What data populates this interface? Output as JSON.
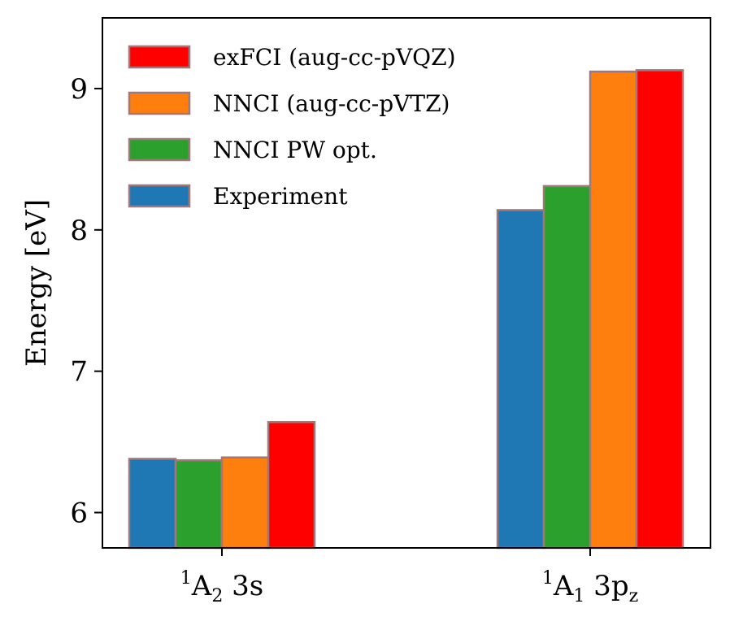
{
  "chart_data": {
    "type": "bar",
    "ylabel": "Energy [eV]",
    "xlabel": "",
    "ylim": [
      5.75,
      9.5
    ],
    "yticks": [
      6,
      7,
      8,
      9
    ],
    "grid": false,
    "legend_position": "top-left",
    "categories": [
      {
        "base": "1",
        "main": "A",
        "sub": "2",
        "suffix": " 3s",
        "suffix_sub": ""
      },
      {
        "base": "1",
        "main": "A",
        "sub": "1",
        "suffix": " 3p",
        "suffix_sub": "z"
      }
    ],
    "series": [
      {
        "name": "Experiment",
        "color": "#1f77b4",
        "values": [
          6.38,
          8.14
        ]
      },
      {
        "name": "NNCI PW opt.",
        "color": "#2ca02c",
        "values": [
          6.37,
          8.31
        ]
      },
      {
        "name": "NNCI (aug-cc-pVTZ)",
        "color": "#ff7f0e",
        "values": [
          6.39,
          9.12
        ]
      },
      {
        "name": "exFCI (aug-cc-pVQZ)",
        "color": "#ff0000",
        "values": [
          6.64,
          9.13
        ]
      }
    ],
    "legend_order": [
      "exFCI (aug-cc-pVQZ)",
      "NNCI (aug-cc-pVTZ)",
      "NNCI PW opt.",
      "Experiment"
    ],
    "edge_color": "#a0787a"
  }
}
